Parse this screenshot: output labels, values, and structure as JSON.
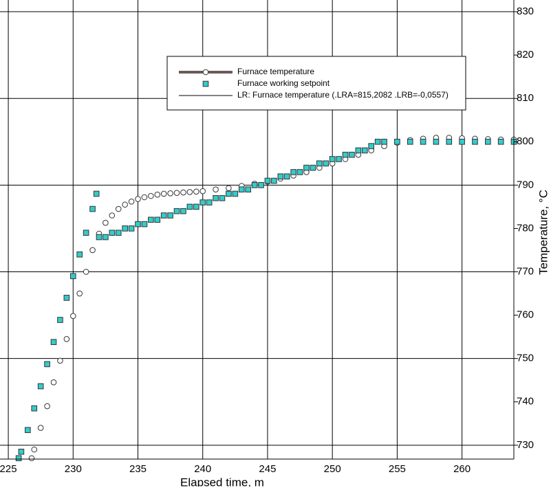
{
  "chart_data": {
    "type": "scatter",
    "x_label": "Elapsed time, m",
    "y_label": "Temperature, °C",
    "xlim": [
      224.36,
      264
    ],
    "ylim": [
      726.8,
      832.7
    ],
    "xticks": [
      225,
      230,
      235,
      240,
      245,
      250,
      255,
      260
    ],
    "yticks": [
      730,
      740,
      750,
      760,
      770,
      780,
      790,
      800,
      810,
      820,
      830
    ],
    "grid": true,
    "legend": "top-center",
    "series": [
      {
        "name": "Furnace temperature",
        "color": "#6b5a5a",
        "marker": "circle",
        "x": [
          226.8,
          227,
          227.5,
          228,
          228.5,
          229,
          229.5,
          230,
          230.5,
          231,
          231.5,
          232,
          232.5,
          233,
          233.5,
          234,
          234.5,
          235,
          235.5,
          236,
          236.5,
          237,
          237.5,
          238,
          238.5,
          239,
          239.5,
          240,
          241,
          242,
          243,
          244,
          245,
          246,
          247,
          248,
          249,
          250,
          251,
          252,
          253,
          254,
          255,
          256,
          257,
          258,
          259,
          260,
          261,
          262,
          263,
          264
        ],
        "values": [
          727,
          729,
          734,
          739,
          744.5,
          749.5,
          754.5,
          759.8,
          765,
          770,
          775,
          778.8,
          781.3,
          783,
          784.5,
          785.5,
          786.2,
          786.8,
          787.2,
          787.5,
          787.8,
          788,
          788.1,
          788.2,
          788.3,
          788.4,
          788.5,
          788.6,
          789,
          789.3,
          789.8,
          790.3,
          790.8,
          791.5,
          792.2,
          793,
          794,
          795,
          796,
          797,
          798,
          799,
          799.8,
          800.4,
          800.7,
          800.9,
          800.9,
          800.8,
          800.7,
          800.6,
          800.5,
          800.5
        ]
      },
      {
        "name": "Furnace working setpoint",
        "color": "#33cccc",
        "marker": "square",
        "x": [
          225.8,
          226,
          226.5,
          227,
          227.5,
          228,
          228.5,
          229,
          229.5,
          230,
          230.5,
          231,
          231.5,
          231.8,
          232,
          232.5,
          233,
          233.5,
          234,
          234.5,
          235,
          235.5,
          236,
          236.5,
          237,
          237.5,
          238,
          238.5,
          239,
          239.5,
          240,
          240.5,
          241,
          241.5,
          242,
          242.5,
          243,
          243.5,
          244,
          244.5,
          245,
          245.5,
          246,
          246.5,
          247,
          247.5,
          248,
          248.5,
          249,
          249.5,
          250,
          250.5,
          251,
          251.5,
          252,
          252.5,
          253,
          253.5,
          254,
          255,
          256,
          257,
          258,
          259,
          260,
          261,
          262,
          263,
          264
        ],
        "values": [
          727,
          728.5,
          733.5,
          738.5,
          743.6,
          748.7,
          753.8,
          758.9,
          764,
          769,
          774,
          779,
          784.5,
          788,
          778,
          778,
          779,
          779,
          780,
          780,
          781,
          781,
          782,
          782,
          783,
          783,
          784,
          784,
          785,
          785,
          786,
          786,
          787,
          787,
          788,
          788,
          789,
          789,
          790,
          790,
          791,
          791,
          792,
          792,
          793,
          793,
          794,
          794,
          795,
          795,
          796,
          796,
          797,
          797,
          798,
          798,
          799,
          800,
          800,
          800,
          800,
          800,
          800,
          800,
          800,
          800,
          800,
          800,
          800
        ]
      },
      {
        "name": "LR: Furnace temperature (.LRA=815,2082 .LRB=-0,0557)",
        "color": "#000000",
        "marker": "line"
      }
    ]
  }
}
